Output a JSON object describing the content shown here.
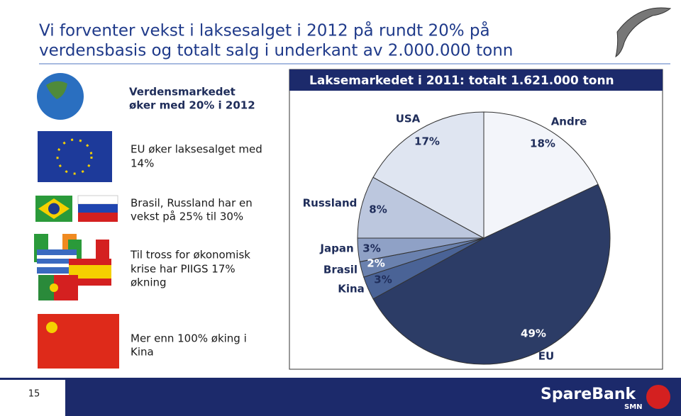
{
  "title_lines": [
    "Vi forventer vekst i laksesalget i 2012 på rundt 20% på",
    "verdensbasis og totalt salg i underkant av 2.000.000 tonn"
  ],
  "points": [
    {
      "lines": [
        "Verdensmarkedet",
        "øker med 20% i 2012"
      ]
    },
    {
      "lines": [
        "EU øker laksesalget med",
        "14%"
      ]
    },
    {
      "lines": [
        "Brasil, Russland har en",
        "vekst på 25% til 30%"
      ]
    },
    {
      "lines": [
        "Til tross for økonomisk",
        "krise har PIIGS 17%",
        "økning"
      ]
    },
    {
      "lines": [
        "Mer enn 100% øking i",
        "Kina"
      ]
    }
  ],
  "chart_data": {
    "type": "pie",
    "title": "Laksemarkedet i 2011: totalt 1.621.000 tonn",
    "categories": [
      "Andre",
      "EU",
      "Kina",
      "Brasil",
      "Japan",
      "Russland",
      "USA"
    ],
    "values": [
      18,
      49,
      3,
      2,
      3,
      8,
      17
    ],
    "value_labels": [
      "18%",
      "49%",
      "3%",
      "2%",
      "3%",
      "8%",
      "17%"
    ],
    "colors": [
      "#f3f5fa",
      "#2c3c66",
      "#4a6396",
      "#6a81ae",
      "#8fa1c6",
      "#bcc7de",
      "#dfe5f1"
    ]
  },
  "footer": {
    "page": "15",
    "logo": "SpareBank",
    "logo_sub": "SMN"
  }
}
